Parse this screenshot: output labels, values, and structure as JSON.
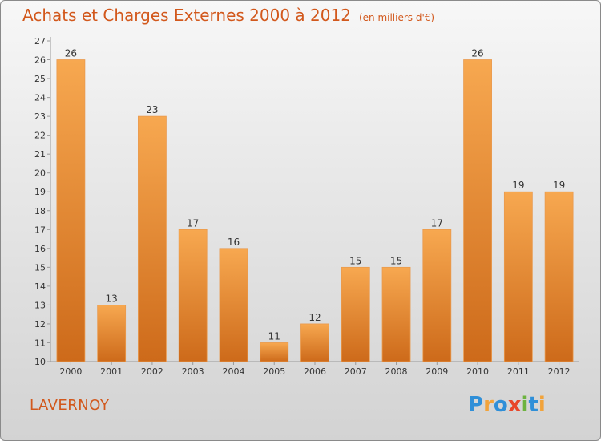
{
  "title": "Achats et Charges Externes 2000 à 2012",
  "subtitle": "(en milliers d'€)",
  "place": "LAVERNOY",
  "logo": {
    "text": "Proxiti",
    "letters": [
      {
        "ch": "P",
        "color": "#2f8fd8"
      },
      {
        "ch": "r",
        "color": "#f2a33a"
      },
      {
        "ch": "o",
        "color": "#2f8fd8"
      },
      {
        "ch": "x",
        "color": "#e8462a"
      },
      {
        "ch": "i",
        "color": "#6db33f"
      },
      {
        "ch": "t",
        "color": "#2f8fd8"
      },
      {
        "ch": "i",
        "color": "#f2a33a"
      }
    ]
  },
  "colors": {
    "bar_light": "#f7a850",
    "bar_dark": "#cd6a1a",
    "accent": "#d2581c"
  },
  "chart_data": {
    "type": "bar",
    "title": "Achats et Charges Externes 2000 à 2012",
    "subtitle": "(en milliers d'€)",
    "categories": [
      "2000",
      "2001",
      "2002",
      "2003",
      "2004",
      "2005",
      "2006",
      "2007",
      "2008",
      "2009",
      "2010",
      "2011",
      "2012"
    ],
    "values": [
      26,
      13,
      23,
      17,
      16,
      11,
      12,
      15,
      15,
      17,
      26,
      19,
      19
    ],
    "ylim": [
      10,
      27
    ],
    "yticks": [
      10,
      11,
      12,
      13,
      14,
      15,
      16,
      17,
      18,
      19,
      20,
      21,
      22,
      23,
      24,
      25,
      26,
      27
    ],
    "grid": false,
    "legend": "none"
  }
}
